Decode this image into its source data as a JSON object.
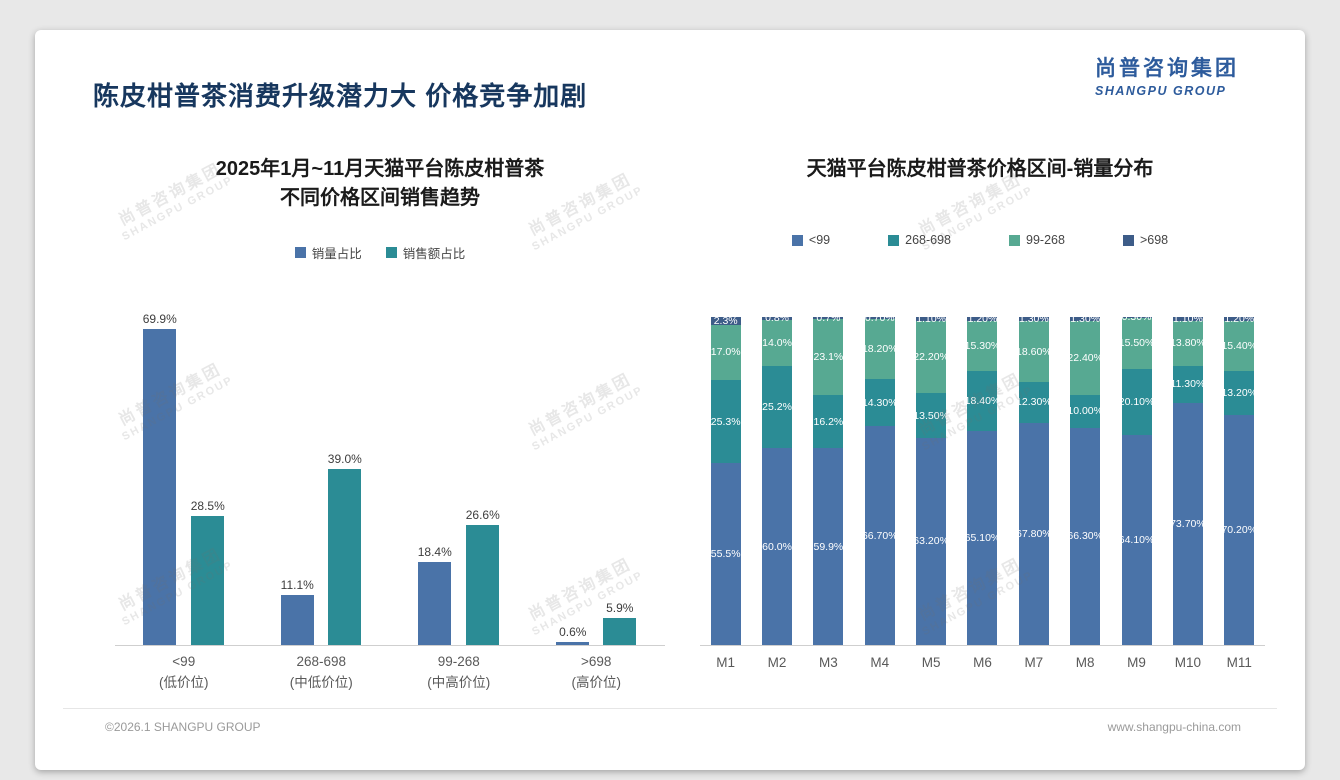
{
  "slide": {
    "title": "陈皮柑普茶消费升级潜力大 价格竞争加剧",
    "logo": {
      "cn": "尚普咨询集团",
      "en": "SHANGPU GROUP"
    },
    "watermark": {
      "line1": "尚普咨询集团",
      "line2": "SHANGPU GROUP"
    },
    "footer": {
      "left": "©2026.1 SHANGPU GROUP",
      "right": "www.shangpu-china.com"
    }
  },
  "chart_data": [
    {
      "type": "bar",
      "title": "2025年1月~11月天猫平台陈皮柑普茶 不同价格区间销售趋势",
      "title_lines": [
        "2025年1月~11月天猫平台陈皮柑普茶",
        "不同价格区间销售趋势"
      ],
      "categories": [
        "<99",
        "268-698",
        "99-268",
        ">698"
      ],
      "category_sublabels": [
        "(低价位)",
        "(中低价位)",
        "(中高价位)",
        "(高价位)"
      ],
      "series": [
        {
          "name": "销量占比",
          "color": "#4a73a8",
          "values": [
            69.9,
            11.1,
            18.4,
            0.6
          ]
        },
        {
          "name": "销售额占比",
          "color": "#2b8c95",
          "values": [
            28.5,
            39.0,
            26.6,
            5.9
          ]
        }
      ],
      "value_labels": [
        [
          "69.9%",
          "11.1%",
          "18.4%",
          "0.6%"
        ],
        [
          "28.5%",
          "39.0%",
          "26.6%",
          "5.9%"
        ]
      ],
      "xlabel": "",
      "ylabel": "",
      "ylim": [
        0,
        73
      ],
      "grid": false,
      "legend_position": "top"
    },
    {
      "type": "stacked-bar",
      "title": "天猫平台陈皮柑普茶价格区间-销量分布",
      "categories": [
        "M1",
        "M2",
        "M3",
        "M4",
        "M5",
        "M6",
        "M7",
        "M8",
        "M9",
        "M10",
        "M11"
      ],
      "series": [
        {
          "name": "<99",
          "color": "#4a73a8",
          "values": [
            55.5,
            60.0,
            59.9,
            66.7,
            63.2,
            65.1,
            67.8,
            66.3,
            64.1,
            73.7,
            70.2
          ],
          "labels": [
            "55.5%",
            "60.0%",
            "59.9%",
            "66.70%",
            "63.20%",
            "65.10%",
            "67.80%",
            "66.30%",
            "64.10%",
            "73.70%",
            "70.20%"
          ]
        },
        {
          "name": "268-698",
          "color": "#2b8c95",
          "values": [
            25.3,
            25.2,
            16.2,
            14.3,
            13.5,
            18.4,
            12.3,
            10.0,
            20.1,
            11.3,
            13.2
          ],
          "labels": [
            "25.3%",
            "25.2%",
            "16.2%",
            "14.30%",
            "13.50%",
            "18.40%",
            "12.30%",
            "10.00%",
            "20.10%",
            "11.30%",
            "13.20%"
          ]
        },
        {
          "name": "99-268",
          "color": "#57a992",
          "values": [
            17.0,
            14.0,
            23.1,
            18.2,
            22.2,
            15.3,
            18.6,
            22.4,
            15.5,
            13.8,
            15.4
          ],
          "labels": [
            "17.0%",
            "14.0%",
            "23.1%",
            "18.20%",
            "22.20%",
            "15.30%",
            "18.60%",
            "22.40%",
            "15.50%",
            "13.80%",
            "15.40%"
          ]
        },
        {
          "name": ">698",
          "color": "#3d5c88",
          "values": [
            2.3,
            0.8,
            0.7,
            0.7,
            1.1,
            1.2,
            1.3,
            1.3,
            0.3,
            1.1,
            1.2
          ],
          "labels": [
            "2.3%",
            "0.8%",
            "0.7%",
            "0.70%",
            "1.10%",
            "1.20%",
            "1.30%",
            "1.30%",
            "0.30%",
            "1.10%",
            "1.20%"
          ]
        }
      ],
      "stack_order_bottom_to_top": [
        "<99",
        "268-698",
        "99-268",
        ">698"
      ],
      "unit": "percent",
      "grid": false,
      "legend_position": "top"
    }
  ]
}
